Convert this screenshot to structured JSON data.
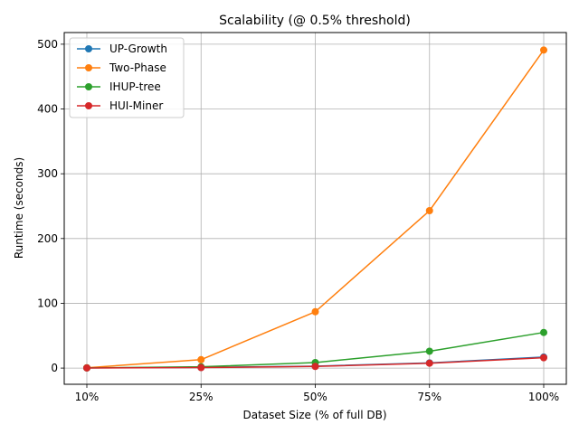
{
  "chart_data": {
    "type": "line",
    "title": "Scalability (@ 0.5% threshold)",
    "xlabel": "Dataset Size (% of full DB)",
    "ylabel": "Runtime (seconds)",
    "categories": [
      "10%",
      "25%",
      "50%",
      "75%",
      "100%"
    ],
    "ylim": [
      -25,
      518
    ],
    "yticks": [
      0,
      100,
      200,
      300,
      400,
      500
    ],
    "grid": true,
    "legend_position": "top-left",
    "series": [
      {
        "name": "UP-Growth",
        "color": "#1f77b4",
        "values": [
          0.3,
          1.0,
          3.0,
          8.0,
          17.0
        ]
      },
      {
        "name": "Two-Phase",
        "color": "#ff7f0e",
        "values": [
          0.5,
          13.0,
          87.0,
          243.0,
          491.0
        ]
      },
      {
        "name": "IHUP-tree",
        "color": "#2ca02c",
        "values": [
          0.3,
          2.0,
          8.5,
          26.0,
          55.0
        ]
      },
      {
        "name": "HUI-Miner",
        "color": "#d62728",
        "values": [
          0.2,
          0.8,
          2.5,
          7.5,
          16.0
        ]
      }
    ]
  }
}
